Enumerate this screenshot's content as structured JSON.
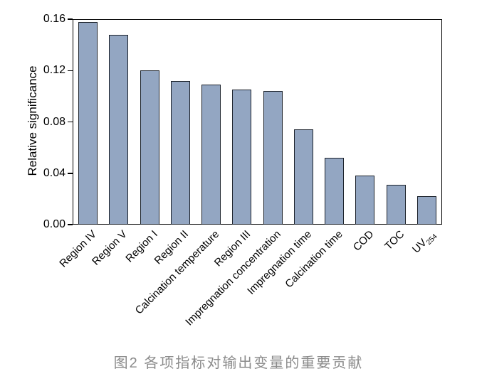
{
  "caption": {
    "text": "图2  各项指标对输出变量的重要贡献"
  },
  "colors": {
    "bar_fill": "#93a6c2",
    "bar_border": "#1c222b",
    "axis": "#000000",
    "caption_text": "#8b8b8b",
    "background": "#ffffff"
  },
  "chart_data": {
    "type": "bar",
    "title": "",
    "xlabel": "",
    "ylabel": "Relative significance",
    "categories": [
      "Region IV",
      "Region V",
      "Region I",
      "Region II",
      "Calcination temperature",
      "Region III",
      "Impregnation concentration",
      "Impregnation time",
      "Calcination time",
      "COD",
      "TOC",
      "UV"
    ],
    "category_subscripts": [
      "",
      "",
      "",
      "",
      "",
      "",
      "",
      "",
      "",
      "",
      "",
      "254"
    ],
    "values": [
      0.158,
      0.148,
      0.12,
      0.112,
      0.109,
      0.105,
      0.104,
      0.074,
      0.052,
      0.038,
      0.031,
      0.022
    ],
    "ylim": [
      0,
      0.16
    ],
    "yticks": [
      0.0,
      0.04,
      0.08,
      0.12,
      0.16
    ],
    "ytick_labels": [
      "0.00",
      "0.04",
      "0.08",
      "0.12",
      "0.16"
    ],
    "grid": false,
    "legend": false,
    "x_label_rotation_deg": 45
  }
}
